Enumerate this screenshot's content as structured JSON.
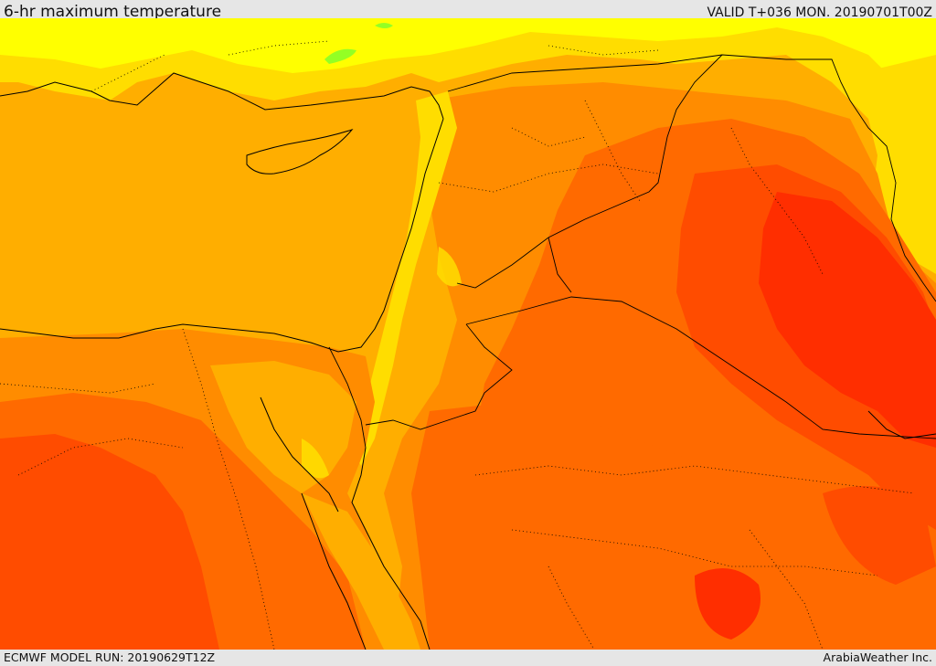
{
  "header": {
    "title": "6-hr maximum temperature",
    "valid": "VALID T+036 MON. 20190701T00Z"
  },
  "footer": {
    "model_run": "ECMWF MODEL RUN: 20190629T12Z",
    "credit": "ArabiaWeather Inc."
  },
  "palette": {
    "yellow": "#ffff00",
    "light_yellow_orange": "#ffdd00",
    "amber": "#ffae00",
    "orange": "#ff8c00",
    "dark_orange": "#ff6a00",
    "red_orange": "#ff4c00",
    "red": "#ff2e00",
    "green": "#66ff33",
    "border": "#000000"
  }
}
